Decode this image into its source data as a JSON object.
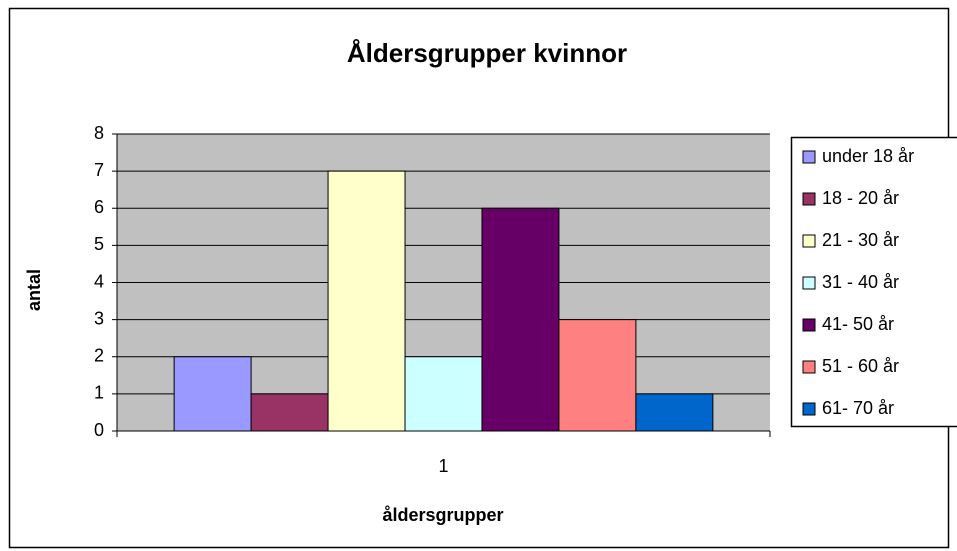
{
  "chart_data": {
    "type": "bar",
    "title": "Åldersgrupper kvinnor",
    "x_label": "åldersgrupper",
    "y_label": "antal",
    "categories": [
      "1"
    ],
    "series": [
      {
        "name": "under 18 år",
        "color": "#9999ff",
        "values": [
          2
        ]
      },
      {
        "name": "18 - 20 år",
        "color": "#993366",
        "values": [
          1
        ]
      },
      {
        "name": "21 - 30 år",
        "color": "#ffffcc",
        "values": [
          7
        ]
      },
      {
        "name": "31 - 40 år",
        "color": "#ccffff",
        "values": [
          2
        ]
      },
      {
        "name": "41- 50 år",
        "color": "#660066",
        "values": [
          6
        ]
      },
      {
        "name": "51 - 60 år",
        "color": "#ff8080",
        "values": [
          3
        ]
      },
      {
        "name": "61- 70 år",
        "color": "#0066cc",
        "values": [
          1
        ]
      }
    ],
    "ylim": [
      0,
      8
    ],
    "yticks": [
      0,
      1,
      2,
      3,
      4,
      5,
      6,
      7,
      8
    ],
    "grid": true,
    "plot_background": "#c0c0c0",
    "legend": "right"
  }
}
